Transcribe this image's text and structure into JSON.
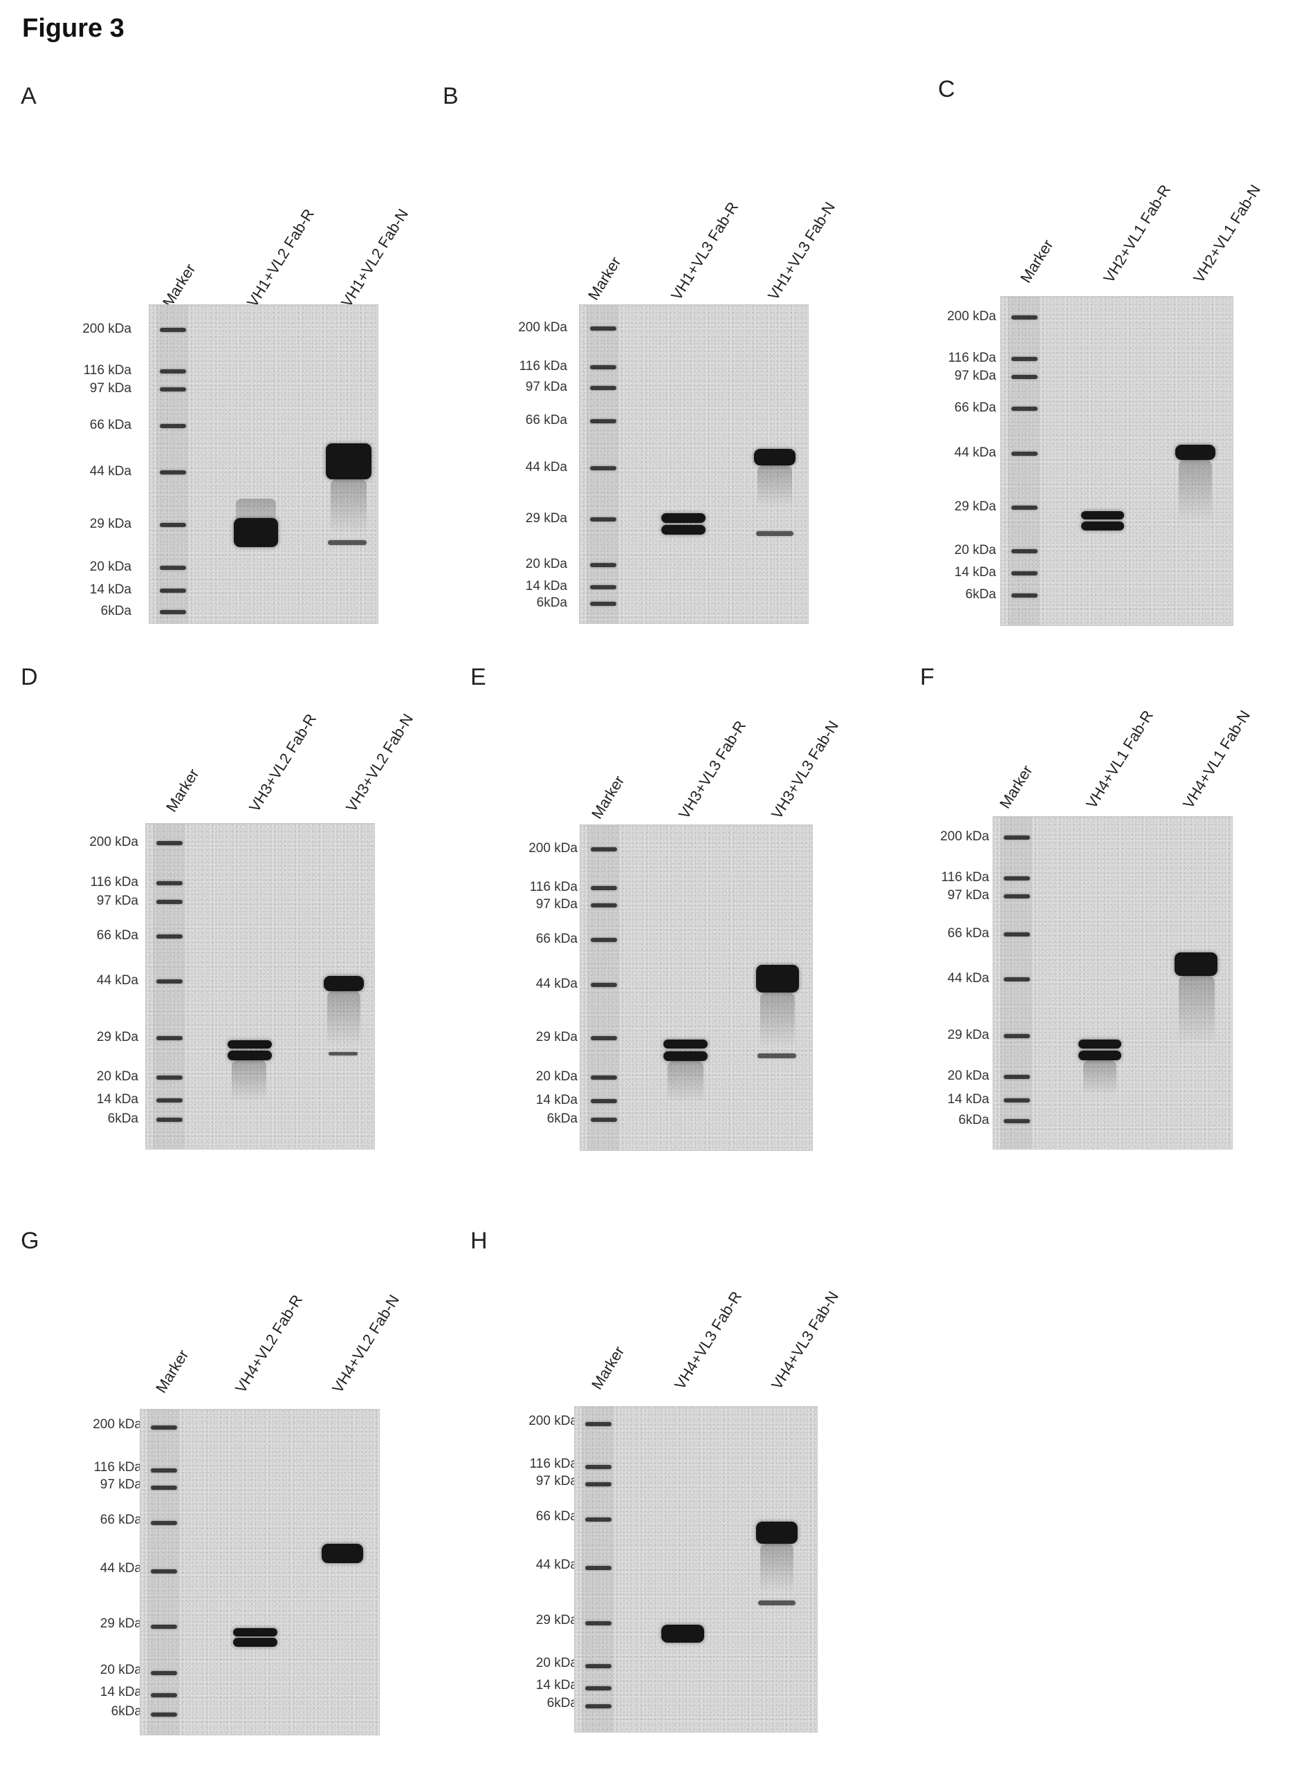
{
  "figure_title": "Figure 3",
  "panels": [
    {
      "letter": "A",
      "lanes": [
        "Marker",
        "VH1+VL2 Fab-R",
        "VH1+VL2 Fab-N"
      ],
      "mw_labels": [
        "200 kDa",
        "116 kDa",
        "97 kDa",
        "66 kDa",
        "44 kDa",
        "29 kDa",
        "20 kDa",
        "14 kDa",
        "6kDa"
      ]
    },
    {
      "letter": "B",
      "lanes": [
        "Marker",
        "VH1+VL3 Fab-R",
        "VH1+VL3 Fab-N"
      ],
      "mw_labels": [
        "200 kDa",
        "116 kDa",
        "97 kDa",
        "66 kDa",
        "44 kDa",
        "29 kDa",
        "20 kDa",
        "14 kDa",
        "6kDa"
      ]
    },
    {
      "letter": "C",
      "lanes": [
        "Marker",
        "VH2+VL1 Fab-R",
        "VH2+VL1 Fab-N"
      ],
      "mw_labels": [
        "200 kDa",
        "116 kDa",
        "97 kDa",
        "66 kDa",
        "44 kDa",
        "29 kDa",
        "20 kDa",
        "14 kDa",
        "6kDa"
      ]
    },
    {
      "letter": "D",
      "lanes": [
        "Marker",
        "VH3+VL2 Fab-R",
        "VH3+VL2 Fab-N"
      ],
      "mw_labels": [
        "200 kDa",
        "116 kDa",
        "97 kDa",
        "66 kDa",
        "44 kDa",
        "29 kDa",
        "20 kDa",
        "14 kDa",
        "6kDa"
      ]
    },
    {
      "letter": "E",
      "lanes": [
        "Marker",
        "VH3+VL3 Fab-R",
        "VH3+VL3 Fab-N"
      ],
      "mw_labels": [
        "200 kDa",
        "116 kDa",
        "97 kDa",
        "66 kDa",
        "44 kDa",
        "29 kDa",
        "20 kDa",
        "14 kDa",
        "6kDa"
      ]
    },
    {
      "letter": "F",
      "lanes": [
        "Marker",
        "VH4+VL1 Fab-R",
        "VH4+VL1 Fab-N"
      ],
      "mw_labels": [
        "200 kDa",
        "116 kDa",
        "97 kDa",
        "66 kDa",
        "44 kDa",
        "29 kDa",
        "20 kDa",
        "14 kDa",
        "6kDa"
      ]
    },
    {
      "letter": "G",
      "lanes": [
        "Marker",
        "VH4+VL2 Fab-R",
        "VH4+VL2 Fab-N"
      ],
      "mw_labels": [
        "200 kDa",
        "116 kDa",
        "97 kDa",
        "66 kDa",
        "44 kDa",
        "29 kDa",
        "20 kDa",
        "14 kDa",
        "6kDa"
      ]
    },
    {
      "letter": "H",
      "lanes": [
        "Marker",
        "VH4+VL3 Fab-R",
        "VH4+VL3 Fab-N"
      ],
      "mw_labels": [
        "200 kDa",
        "116 kDa",
        "97 kDa",
        "66 kDa",
        "44 kDa",
        "29 kDa",
        "20 kDa",
        "14 kDa",
        "6kDa"
      ]
    }
  ]
}
